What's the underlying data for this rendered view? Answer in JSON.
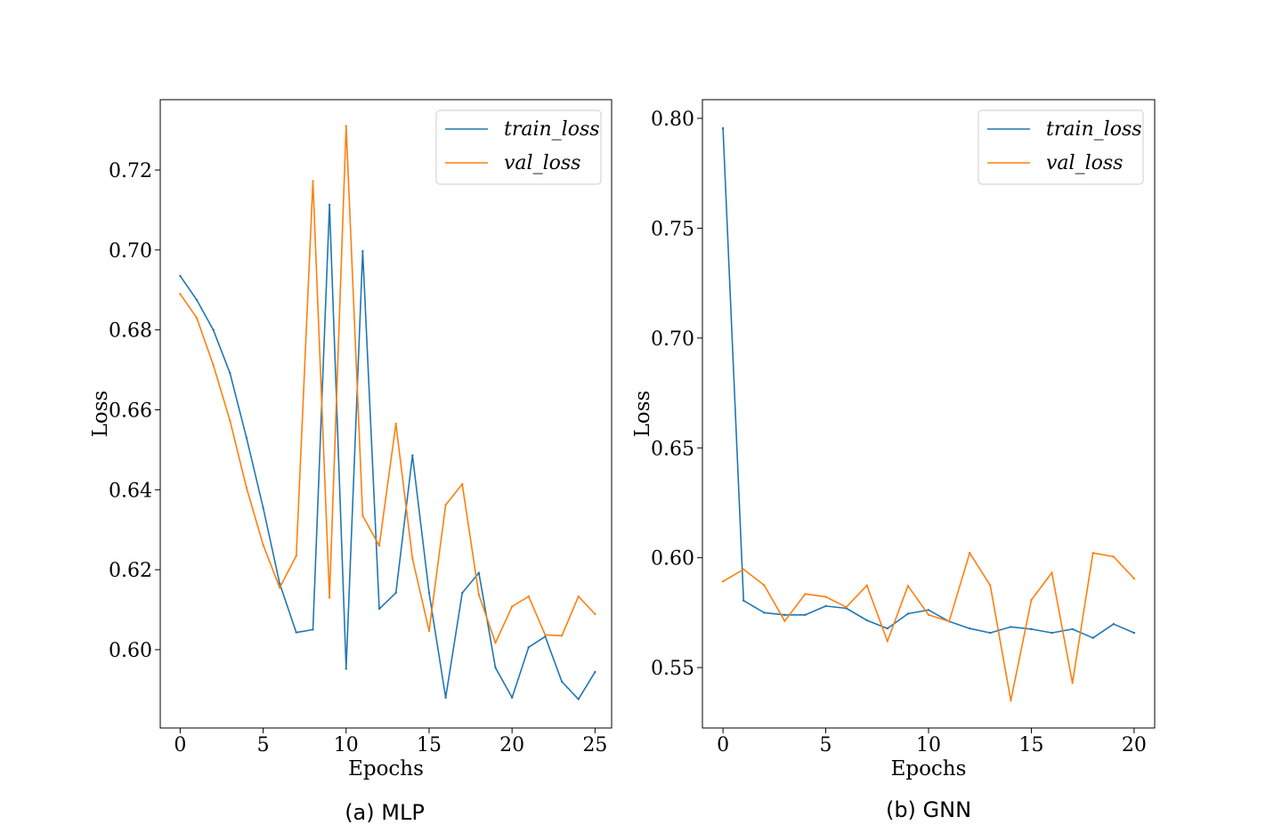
{
  "colors": {
    "train": "#1f77b4",
    "val": "#ff7f0e"
  },
  "chart_data": [
    {
      "type": "line",
      "caption": "(a) MLP",
      "xlabel": "Epochs",
      "ylabel": "Loss",
      "xlim": [
        -1.2,
        26.0
      ],
      "ylim": [
        0.5804,
        0.7376
      ],
      "xticks": [
        0,
        5,
        10,
        15,
        20,
        25
      ],
      "xtick_labels": [
        "0",
        "5",
        "10",
        "15",
        "20",
        "25"
      ],
      "yticks": [
        0.6,
        0.62,
        0.64,
        0.66,
        0.68,
        0.7,
        0.72
      ],
      "ytick_labels": [
        "0.60",
        "0.62",
        "0.64",
        "0.66",
        "0.68",
        "0.70",
        "0.72"
      ],
      "legend_position": "top-right",
      "grid": false,
      "x": [
        0,
        1,
        2,
        3,
        4,
        5,
        6,
        7,
        8,
        9,
        10,
        11,
        12,
        13,
        14,
        15,
        16,
        17,
        18,
        19,
        20,
        21,
        22,
        23,
        24,
        25
      ],
      "series": [
        {
          "name": "train_loss",
          "color_key": "train",
          "values": [
            0.6935,
            0.6875,
            0.68,
            0.6692,
            0.653,
            0.6355,
            0.6165,
            0.6043,
            0.605,
            0.7113,
            0.5952,
            0.6997,
            0.6102,
            0.6142,
            0.6486,
            0.6142,
            0.588,
            0.6142,
            0.6192,
            0.5955,
            0.588,
            0.6006,
            0.6033,
            0.592,
            0.5876,
            0.5944
          ]
        },
        {
          "name": "val_loss",
          "color_key": "val",
          "values": [
            0.689,
            0.683,
            0.6712,
            0.6573,
            0.6405,
            0.6262,
            0.6155,
            0.6235,
            0.7172,
            0.613,
            0.731,
            0.6335,
            0.626,
            0.6565,
            0.6228,
            0.6047,
            0.6362,
            0.6414,
            0.6137,
            0.6017,
            0.6108,
            0.6133,
            0.6037,
            0.6035,
            0.6133,
            0.6089
          ]
        }
      ]
    },
    {
      "type": "line",
      "caption": "(b) GNN",
      "xlabel": "Epochs",
      "ylabel": "Loss",
      "xlim": [
        -1.0,
        21.0
      ],
      "ylim": [
        0.5225,
        0.8085
      ],
      "xticks": [
        0,
        5,
        10,
        15,
        20
      ],
      "xtick_labels": [
        "0",
        "5",
        "10",
        "15",
        "20"
      ],
      "yticks": [
        0.55,
        0.6,
        0.65,
        0.7,
        0.75,
        0.8
      ],
      "ytick_labels": [
        "0.55",
        "0.60",
        "0.65",
        "0.70",
        "0.75",
        "0.80"
      ],
      "legend_position": "top-right",
      "grid": false,
      "x": [
        0,
        1,
        2,
        3,
        4,
        5,
        6,
        7,
        8,
        9,
        10,
        11,
        12,
        13,
        14,
        15,
        16,
        17,
        18,
        19,
        20
      ],
      "series": [
        {
          "name": "train_loss",
          "color_key": "train",
          "values": [
            0.7955,
            0.5805,
            0.575,
            0.574,
            0.574,
            0.578,
            0.577,
            0.5715,
            0.5678,
            0.5745,
            0.5762,
            0.571,
            0.5678,
            0.5658,
            0.5685,
            0.5675,
            0.5658,
            0.5675,
            0.5635,
            0.5698,
            0.5658
          ]
        },
        {
          "name": "val_loss",
          "color_key": "val",
          "values": [
            0.5892,
            0.5947,
            0.5875,
            0.5712,
            0.5835,
            0.5822,
            0.5775,
            0.5874,
            0.562,
            0.5872,
            0.574,
            0.571,
            0.6022,
            0.5874,
            0.535,
            0.5808,
            0.5932,
            0.543,
            0.6022,
            0.6005,
            0.5905
          ]
        }
      ]
    }
  ]
}
